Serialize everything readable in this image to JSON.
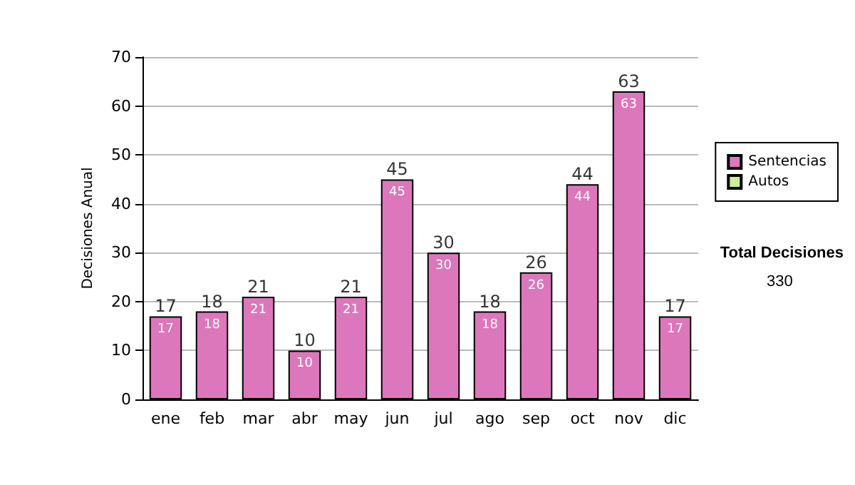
{
  "chart_data": {
    "type": "bar",
    "stacked": true,
    "ylabel": "Decisiones Anual",
    "categories": [
      "ene",
      "feb",
      "mar",
      "abr",
      "may",
      "jun",
      "jul",
      "ago",
      "sep",
      "oct",
      "nov",
      "dic"
    ],
    "series": [
      {
        "name": "Sentencias",
        "color": "#dd77bb",
        "values": [
          17,
          18,
          21,
          10,
          21,
          45,
          30,
          18,
          26,
          44,
          63,
          17
        ],
        "value_labels": [
          "17",
          "18",
          "21",
          "10",
          "21",
          "45",
          "30",
          "18",
          "26",
          "44",
          "63",
          "17"
        ]
      },
      {
        "name": "Autos",
        "color": "#ccee99",
        "values": [
          0,
          0,
          0,
          0,
          0,
          0,
          0,
          0,
          0,
          0,
          0,
          0
        ]
      }
    ],
    "totals": [
      "17",
      "18",
      "21",
      "10",
      "21",
      "45",
      "30",
      "18",
      "26",
      "44",
      "63",
      "17"
    ],
    "ylim": [
      0,
      70
    ],
    "yticks": [
      0,
      10,
      20,
      30,
      40,
      50,
      60,
      70
    ],
    "grid": "y",
    "legend": "right",
    "annotations": [
      "Total Decisiones",
      "330"
    ]
  }
}
